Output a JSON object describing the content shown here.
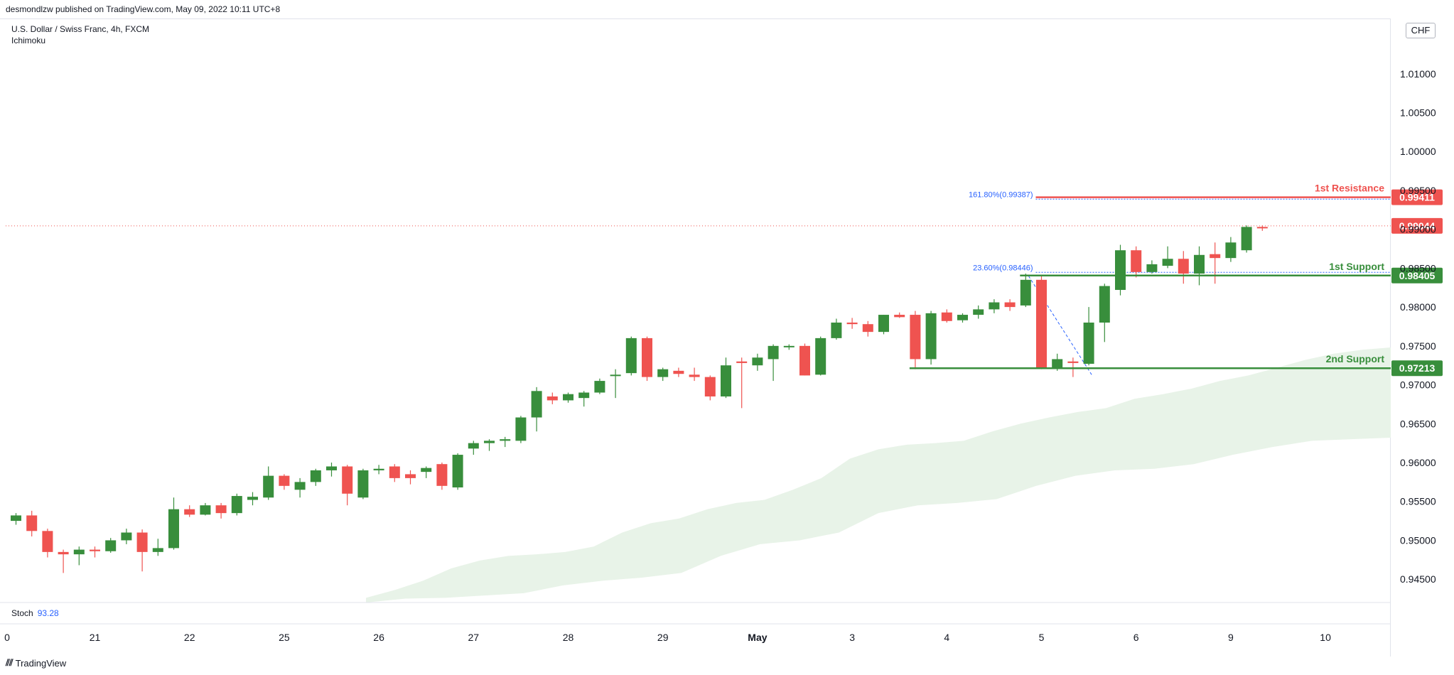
{
  "header": {
    "published": "desmondlzw published on TradingView.com, May 09, 2022 10:11 UTC+8"
  },
  "legend": {
    "symbol": "U.S. Dollar / Swiss Franc, 4h, FXCM",
    "indicator": "Ichimoku"
  },
  "stoch": {
    "label": "Stoch",
    "value": "93.28"
  },
  "currency": "CHF",
  "footer": {
    "brand": "TradingView"
  },
  "colors": {
    "up": "#388e3c",
    "down": "#ef5350",
    "support": "#388e3c",
    "resistance": "#ef5350",
    "cloud": "#e8f3e8",
    "fib": "#2962ff"
  },
  "chart_data": {
    "type": "candlestick",
    "ylim": [
      0.942,
      1.014
    ],
    "y_ticks": [
      "1.01000",
      "1.00500",
      "1.00000",
      "0.99500",
      "0.99000",
      "0.98500",
      "0.98000",
      "0.97500",
      "0.97000",
      "0.96500",
      "0.96000",
      "0.95500",
      "0.95000",
      "0.94500"
    ],
    "x_ticks": [
      {
        "label": "0",
        "i": -0.5
      },
      {
        "label": "21",
        "i": 5.0
      },
      {
        "label": "22",
        "i": 11.0
      },
      {
        "label": "25",
        "i": 17.0
      },
      {
        "label": "26",
        "i": 23.0
      },
      {
        "label": "27",
        "i": 29.0
      },
      {
        "label": "28",
        "i": 35.0
      },
      {
        "label": "29",
        "i": 41.0
      },
      {
        "label": "May",
        "i": 47.0,
        "bold": true
      },
      {
        "label": "3",
        "i": 53.0
      },
      {
        "label": "4",
        "i": 59.0
      },
      {
        "label": "5",
        "i": 65.0
      },
      {
        "label": "6",
        "i": 71.0
      },
      {
        "label": "9",
        "i": 77.0
      },
      {
        "label": "10",
        "i": 83.0
      }
    ],
    "candles": [
      [
        0.9525,
        0.9535,
        0.952,
        0.9532
      ],
      [
        0.9532,
        0.9538,
        0.9505,
        0.9512
      ],
      [
        0.9512,
        0.9515,
        0.9478,
        0.9485
      ],
      [
        0.9485,
        0.9488,
        0.9458,
        0.9482
      ],
      [
        0.9482,
        0.9492,
        0.9468,
        0.9488
      ],
      [
        0.9488,
        0.9492,
        0.9478,
        0.9486
      ],
      [
        0.9486,
        0.9503,
        0.9484,
        0.95
      ],
      [
        0.95,
        0.9515,
        0.9495,
        0.951
      ],
      [
        0.951,
        0.9514,
        0.946,
        0.9485
      ],
      [
        0.9485,
        0.9502,
        0.948,
        0.949
      ],
      [
        0.949,
        0.9555,
        0.9488,
        0.954
      ],
      [
        0.954,
        0.9545,
        0.953,
        0.9533
      ],
      [
        0.9533,
        0.9548,
        0.9532,
        0.9545
      ],
      [
        0.9545,
        0.9548,
        0.9528,
        0.9535
      ],
      [
        0.9535,
        0.956,
        0.9532,
        0.9557
      ],
      [
        0.9552,
        0.9562,
        0.9545,
        0.9556
      ],
      [
        0.9555,
        0.9595,
        0.9552,
        0.9583
      ],
      [
        0.9583,
        0.9585,
        0.9565,
        0.957
      ],
      [
        0.9565,
        0.958,
        0.9555,
        0.9575
      ],
      [
        0.9575,
        0.9592,
        0.957,
        0.959
      ],
      [
        0.959,
        0.96,
        0.9582,
        0.9595
      ],
      [
        0.9595,
        0.9597,
        0.9545,
        0.956
      ],
      [
        0.9555,
        0.9592,
        0.9553,
        0.959
      ],
      [
        0.959,
        0.9597,
        0.9585,
        0.9592
      ],
      [
        0.9595,
        0.9598,
        0.9575,
        0.958
      ],
      [
        0.9585,
        0.959,
        0.9572,
        0.958
      ],
      [
        0.9588,
        0.9595,
        0.958,
        0.9593
      ],
      [
        0.9598,
        0.96,
        0.9565,
        0.957
      ],
      [
        0.9568,
        0.9612,
        0.9565,
        0.961
      ],
      [
        0.9618,
        0.9628,
        0.961,
        0.9625
      ],
      [
        0.9625,
        0.963,
        0.9615,
        0.9628
      ],
      [
        0.9628,
        0.9633,
        0.962,
        0.963
      ],
      [
        0.9628,
        0.966,
        0.9625,
        0.9658
      ],
      [
        0.9658,
        0.9697,
        0.964,
        0.9692
      ],
      [
        0.9685,
        0.969,
        0.9675,
        0.968
      ],
      [
        0.968,
        0.969,
        0.9677,
        0.9688
      ],
      [
        0.9683,
        0.9692,
        0.9672,
        0.969
      ],
      [
        0.969,
        0.9708,
        0.9688,
        0.9705
      ],
      [
        0.9712,
        0.972,
        0.9683,
        0.9713
      ],
      [
        0.9715,
        0.9762,
        0.9712,
        0.976
      ],
      [
        0.976,
        0.9762,
        0.9705,
        0.971
      ],
      [
        0.971,
        0.9722,
        0.9705,
        0.972
      ],
      [
        0.9718,
        0.9722,
        0.971,
        0.9714
      ],
      [
        0.9713,
        0.9722,
        0.9705,
        0.971
      ],
      [
        0.971,
        0.9712,
        0.968,
        0.9685
      ],
      [
        0.9685,
        0.9735,
        0.9683,
        0.9725
      ],
      [
        0.973,
        0.9735,
        0.967,
        0.9728
      ],
      [
        0.9725,
        0.974,
        0.9718,
        0.9735
      ],
      [
        0.9733,
        0.9752,
        0.9705,
        0.975
      ],
      [
        0.975,
        0.9752,
        0.9745,
        0.975
      ],
      [
        0.975,
        0.9753,
        0.9712,
        0.9712
      ],
      [
        0.9713,
        0.9762,
        0.9712,
        0.976
      ],
      [
        0.976,
        0.9785,
        0.9758,
        0.978
      ],
      [
        0.978,
        0.9786,
        0.9772,
        0.9778
      ],
      [
        0.9778,
        0.9782,
        0.9762,
        0.9768
      ],
      [
        0.9768,
        0.979,
        0.9765,
        0.979
      ],
      [
        0.979,
        0.9793,
        0.9786,
        0.9787
      ],
      [
        0.979,
        0.9795,
        0.972,
        0.9733
      ],
      [
        0.9733,
        0.9795,
        0.9726,
        0.9792
      ],
      [
        0.9793,
        0.9797,
        0.978,
        0.9782
      ],
      [
        0.9783,
        0.9792,
        0.978,
        0.979
      ],
      [
        0.979,
        0.9802,
        0.9785,
        0.9797
      ],
      [
        0.9797,
        0.981,
        0.9792,
        0.9806
      ],
      [
        0.9806,
        0.981,
        0.9795,
        0.98
      ],
      [
        0.9802,
        0.9843,
        0.98,
        0.9835
      ],
      [
        0.9835,
        0.984,
        0.972,
        0.9721
      ],
      [
        0.9721,
        0.974,
        0.9718,
        0.9733
      ],
      [
        0.973,
        0.9735,
        0.971,
        0.9728
      ],
      [
        0.9727,
        0.98,
        0.9725,
        0.978
      ],
      [
        0.978,
        0.983,
        0.9755,
        0.9827
      ],
      [
        0.9822,
        0.988,
        0.9815,
        0.9873
      ],
      [
        0.9873,
        0.9878,
        0.9838,
        0.9845
      ],
      [
        0.9845,
        0.986,
        0.9843,
        0.9855
      ],
      [
        0.9853,
        0.9878,
        0.985,
        0.9862
      ],
      [
        0.9862,
        0.9872,
        0.983,
        0.9843
      ],
      [
        0.9843,
        0.9878,
        0.9828,
        0.9867
      ],
      [
        0.9868,
        0.9883,
        0.983,
        0.9863
      ],
      [
        0.9863,
        0.989,
        0.9858,
        0.9883
      ],
      [
        0.9873,
        0.9905,
        0.987,
        0.9903
      ],
      [
        0.9903,
        0.9905,
        0.9898,
        0.9902
      ]
    ],
    "cloud": {
      "upper": [
        [
          49,
          0.9426
        ],
        [
          50,
          0.9436
        ],
        [
          51,
          0.9448
        ],
        [
          52,
          0.9464
        ],
        [
          53,
          0.9474
        ],
        [
          54,
          0.948
        ],
        [
          55,
          0.9482
        ],
        [
          56,
          0.9485
        ],
        [
          57,
          0.9492
        ],
        [
          58,
          0.951
        ],
        [
          59,
          0.9522
        ],
        [
          60,
          0.9528
        ],
        [
          61,
          0.954
        ],
        [
          62,
          0.9548
        ],
        [
          63,
          0.9552
        ],
        [
          64,
          0.9565
        ],
        [
          65,
          0.958
        ],
        [
          66,
          0.9605
        ],
        [
          67,
          0.9617
        ],
        [
          68,
          0.9623
        ],
        [
          69,
          0.9625
        ],
        [
          70,
          0.9628
        ],
        [
          71,
          0.964
        ],
        [
          72,
          0.965
        ],
        [
          73,
          0.9658
        ],
        [
          74,
          0.9665
        ],
        [
          75,
          0.967
        ],
        [
          76,
          0.9682
        ],
        [
          77,
          0.9688
        ],
        [
          78,
          0.9695
        ],
        [
          79,
          0.9705
        ],
        [
          80,
          0.9712
        ],
        [
          81,
          0.9722
        ],
        [
          82,
          0.9732
        ],
        [
          83,
          0.974
        ],
        [
          84,
          0.9745
        ],
        [
          85,
          0.9748
        ]
      ],
      "lower": [
        [
          49,
          0.942
        ],
        [
          56,
          0.9425
        ],
        [
          64,
          0.9426
        ],
        [
          70,
          0.9429
        ],
        [
          74,
          0.9432
        ],
        [
          78,
          0.9442
        ],
        [
          82,
          0.9448
        ],
        [
          84,
          0.9452
        ],
        [
          85,
          0.9458
        ],
        [
          88,
          0.948
        ],
        [
          90,
          0.9495
        ],
        [
          94,
          0.95
        ],
        [
          96,
          0.951
        ],
        [
          100,
          0.9535
        ],
        [
          104,
          0.9545
        ],
        [
          106,
          0.9548
        ],
        [
          110,
          0.9553
        ],
        [
          114,
          0.957
        ],
        [
          116,
          0.9583
        ],
        [
          118,
          0.959
        ],
        [
          122,
          0.9592
        ],
        [
          125,
          0.9598
        ],
        [
          130,
          0.961
        ],
        [
          134,
          0.962
        ],
        [
          138,
          0.9628
        ],
        [
          142,
          0.963
        ],
        [
          145,
          0.9632
        ]
      ]
    },
    "levels": [
      {
        "name": "1st Resistance",
        "value": "0.99411",
        "y": 0.99411,
        "color": "#ef5350",
        "from_i": 65
      },
      {
        "name": "1st Support",
        "value": "0.98405",
        "y": 0.98405,
        "color": "#388e3c",
        "from_i": 64
      },
      {
        "name": "2nd Support",
        "value": "0.97213",
        "y": 0.97213,
        "color": "#388e3c",
        "from_i": 57
      }
    ],
    "fib": [
      {
        "label": "161.80%(0.99387)",
        "y": 0.99387,
        "from_i": 65
      },
      {
        "label": "23.60%(0.98446)",
        "y": 0.98446,
        "from_i": 65
      }
    ],
    "current_price": {
      "value": "0.99044",
      "y": 0.99044
    }
  }
}
